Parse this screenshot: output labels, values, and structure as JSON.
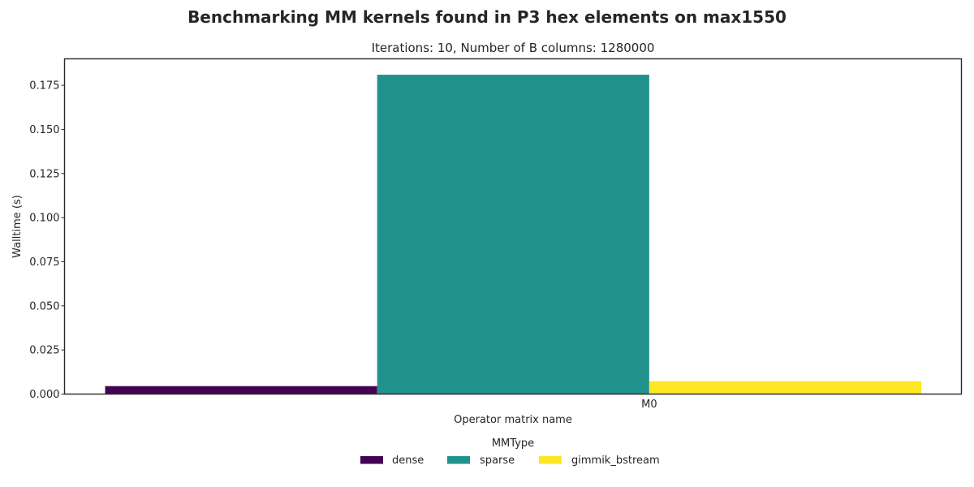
{
  "chart_data": {
    "type": "bar",
    "title": "Benchmarking MM kernels found in P3 hex elements on max1550",
    "subtitle": "Iterations: 10, Number of B columns: 1280000",
    "xlabel": "Operator matrix name",
    "ylabel": "Walltime (s)",
    "categories": [
      "M0"
    ],
    "ylim": [
      0,
      0.19
    ],
    "yticks": [
      "0.000",
      "0.025",
      "0.050",
      "0.075",
      "0.100",
      "0.125",
      "0.150",
      "0.175"
    ],
    "grid": false,
    "legend": {
      "title": "MMType",
      "placement": "bottom-center"
    },
    "series": [
      {
        "name": "dense",
        "color": "#440154",
        "values": [
          0.0045
        ]
      },
      {
        "name": "sparse",
        "color": "#21918c",
        "values": [
          0.181
        ]
      },
      {
        "name": "gimmik_bstream",
        "color": "#fde725",
        "values": [
          0.0073
        ]
      }
    ]
  }
}
